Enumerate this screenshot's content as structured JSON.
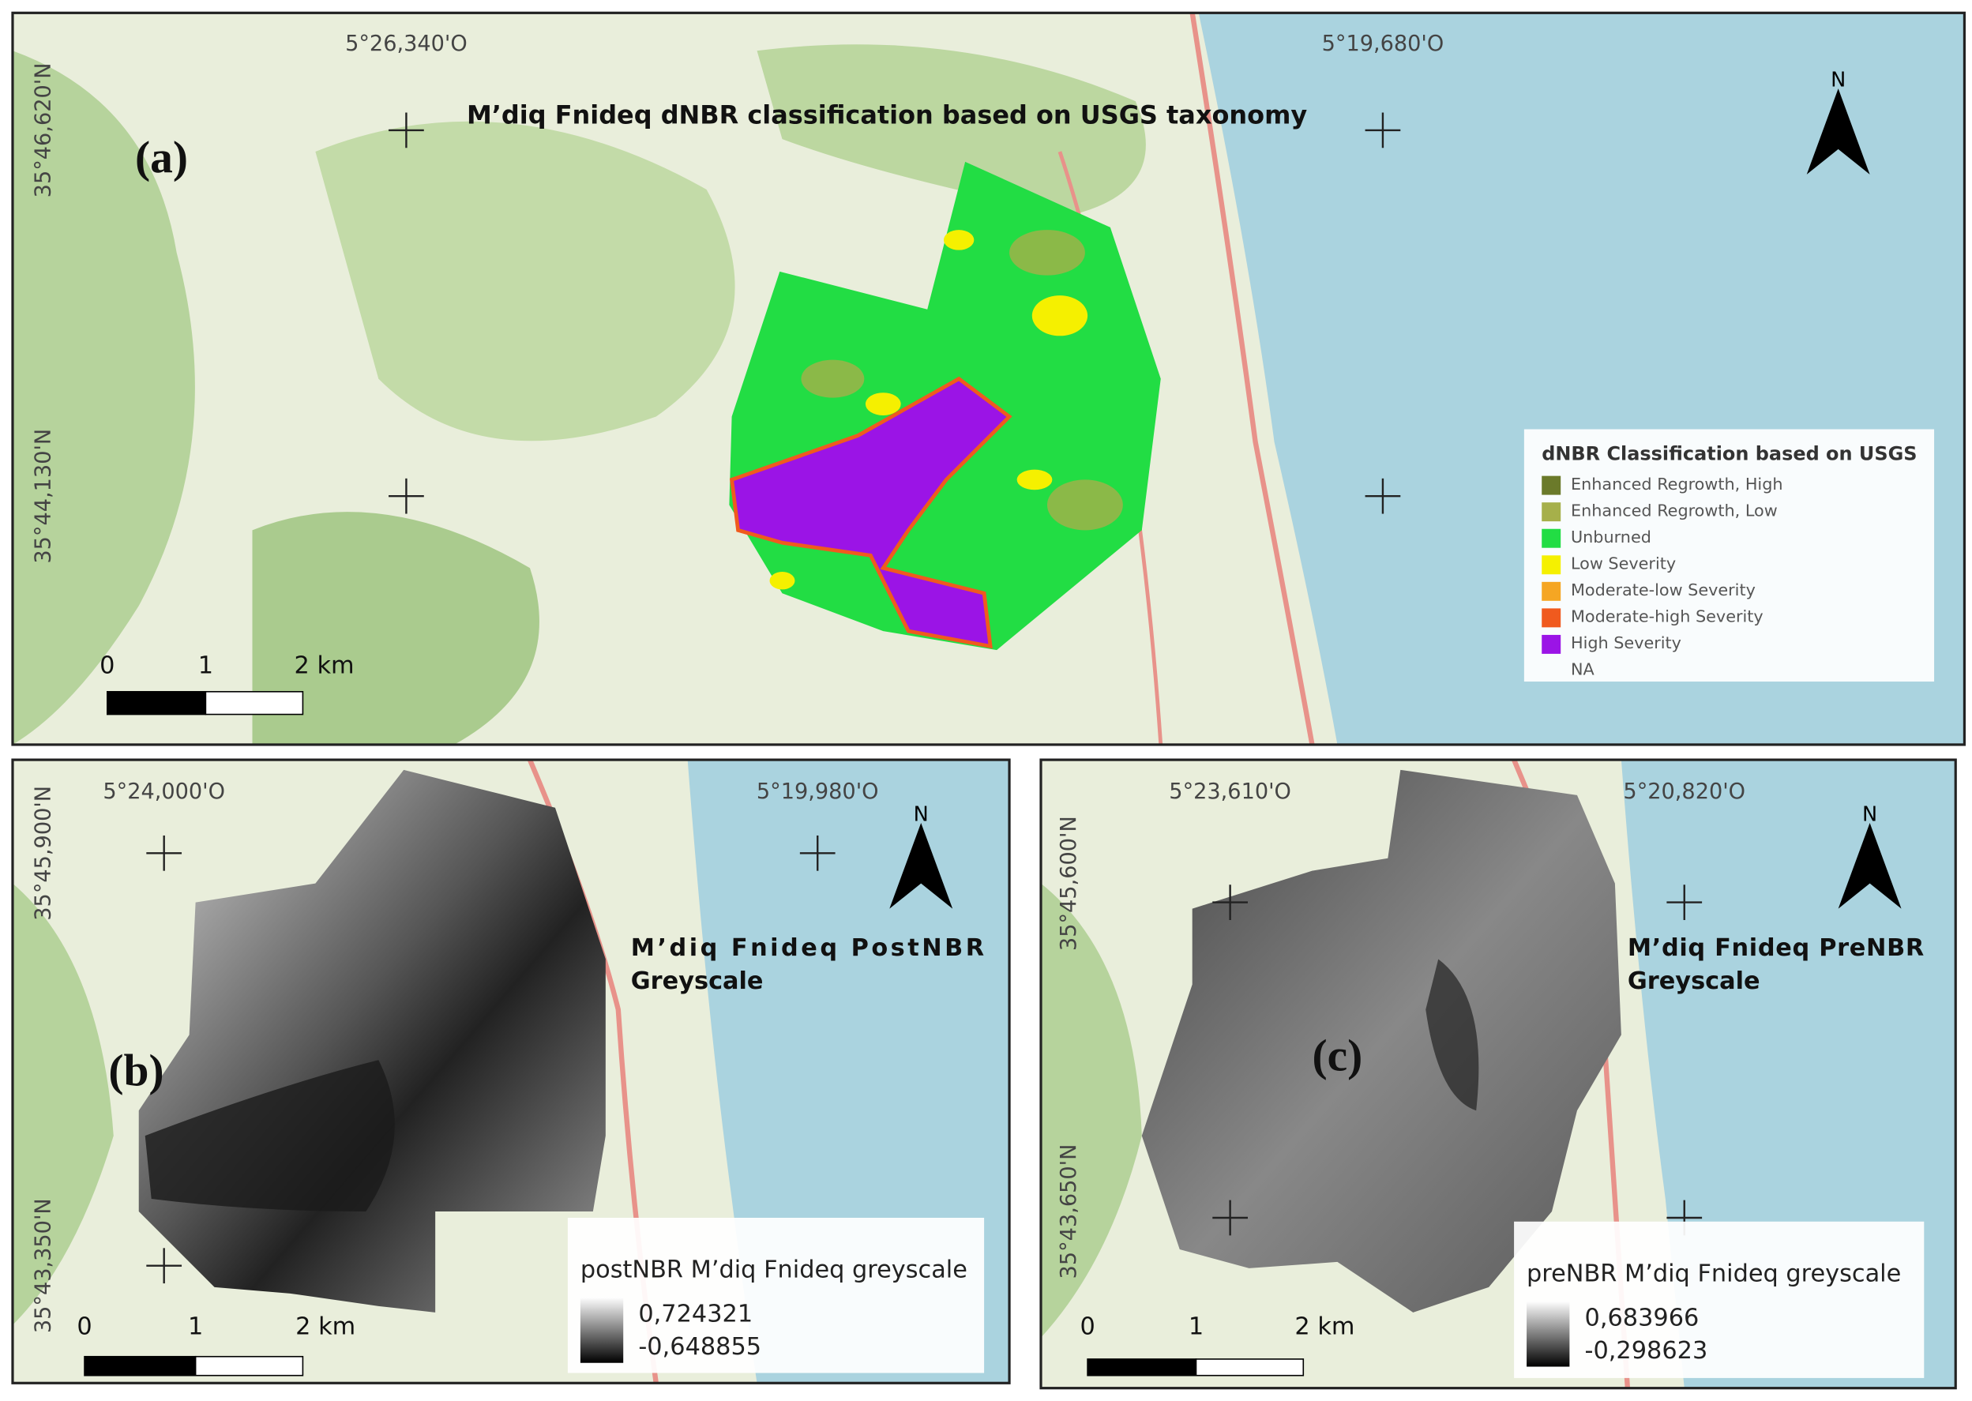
{
  "panels": [
    {
      "label": "(a)",
      "title": "M’diq Fnideq dNBR classification based on USGS taxonomy",
      "lon_labels": [
        "5°26,340'O",
        "5°19,680'O"
      ],
      "lat_labels": [
        "35°46,620'N",
        "35°44,130'N"
      ],
      "north": "N",
      "scale": [
        "0",
        "1",
        "2 km"
      ],
      "legend": {
        "title": "dNBR Classification based on USGS",
        "items": [
          {
            "label": "Enhanced Regrowth, High",
            "color": "#6b7a2a"
          },
          {
            "label": "Enhanced Regrowth, Low",
            "color": "#a6b04a"
          },
          {
            "label": "Unburned",
            "color": "#22dd44"
          },
          {
            "label": "Low Severity",
            "color": "#f5f000"
          },
          {
            "label": "Moderate-low Severity",
            "color": "#f5a623"
          },
          {
            "label": "Moderate-high Severity",
            "color": "#f05a1e"
          },
          {
            "label": "High Severity",
            "color": "#9b14e6"
          },
          {
            "label": "NA"
          }
        ]
      }
    },
    {
      "label": "(b)",
      "title_lines": [
        "M’diq    Fnideq    PostNBR",
        "Greyscale"
      ],
      "lon_labels": [
        "5°24,000'O",
        "5°19,980'O"
      ],
      "lat_labels": [
        "35°45,900'N",
        "35°43,350'N"
      ],
      "north": "N",
      "scale": [
        "0",
        "1",
        "2 km"
      ],
      "legend": {
        "title": "postNBR M’diq Fnideq  greyscale",
        "max": "0,724321",
        "min": "-0,648855"
      }
    },
    {
      "label": "(c)",
      "title_lines": [
        "M’diq Fnideq PreNBR",
        "Greyscale"
      ],
      "lon_labels": [
        "5°23,610'O",
        "5°20,820'O"
      ],
      "lat_labels": [
        "35°45,600'N",
        "35°43,650'N"
      ],
      "north": "N",
      "scale": [
        "0",
        "1",
        "2 km"
      ],
      "legend": {
        "title": "preNBR M’diq Fnideq  greyscale",
        "max": "0,683966",
        "min": "-0,298623"
      }
    }
  ]
}
